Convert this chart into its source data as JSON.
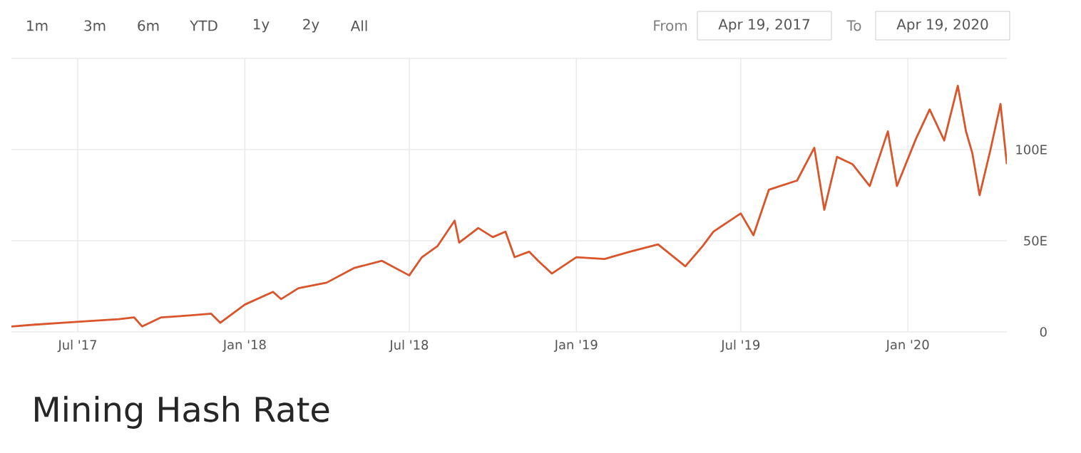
{
  "chart_data": {
    "type": "line",
    "title": "Mining Hash Rate",
    "annotations": [
      "1m",
      "3m",
      "6m",
      "YTD",
      "1y",
      "2y",
      "All",
      "From",
      "Apr 19, 2017",
      "To",
      "Apr 19, 2020"
    ],
    "x": [
      "2017-04-19",
      "2017-05-15",
      "2017-06-15",
      "2017-07-15",
      "2017-08-15",
      "2017-09-01",
      "2017-09-10",
      "2017-10-01",
      "2017-11-01",
      "2017-11-25",
      "2017-12-05",
      "2018-01-01",
      "2018-02-01",
      "2018-02-10",
      "2018-03-01",
      "2018-04-01",
      "2018-05-01",
      "2018-06-01",
      "2018-07-01",
      "2018-07-15",
      "2018-08-01",
      "2018-08-20",
      "2018-08-25",
      "2018-09-15",
      "2018-10-01",
      "2018-10-15",
      "2018-10-25",
      "2018-11-10",
      "2018-11-20",
      "2018-12-05",
      "2019-01-01",
      "2019-02-01",
      "2019-03-01",
      "2019-04-01",
      "2019-05-01",
      "2019-05-20",
      "2019-06-01",
      "2019-07-01",
      "2019-07-15",
      "2019-08-01",
      "2019-09-01",
      "2019-09-20",
      "2019-10-01",
      "2019-10-15",
      "2019-11-01",
      "2019-11-20",
      "2019-12-10",
      "2019-12-20",
      "2020-01-10",
      "2020-01-25",
      "2020-02-10",
      "2020-02-25",
      "2020-03-05",
      "2020-03-12",
      "2020-03-20",
      "2020-04-01",
      "2020-04-12",
      "2020-04-19"
    ],
    "series": [
      {
        "color": "#d9552b",
        "values": [
          3,
          4,
          5,
          6,
          7,
          8,
          3,
          8,
          9,
          10,
          5,
          15,
          22,
          18,
          24,
          27,
          35,
          39,
          31,
          41,
          47,
          61,
          49,
          57,
          52,
          55,
          41,
          44,
          39,
          32,
          41,
          40,
          44,
          48,
          36,
          47,
          55,
          65,
          53,
          78,
          83,
          101,
          67,
          96,
          92,
          80,
          110,
          80,
          106,
          122,
          105,
          135,
          110,
          98,
          75,
          100,
          125,
          92
        ]
      }
    ],
    "ylim": [
      0,
      150
    ],
    "yticks": [
      0,
      {
        "value": 50,
        "label": "50E"
      },
      {
        "value": 100,
        "label": "100E"
      },
      {
        "value": 150,
        "label": null
      }
    ],
    "xlim": [
      "2017-04-19",
      "2020-04-19"
    ],
    "xticks": [
      {
        "value": "2017-07-01",
        "label": "Jul '17"
      },
      {
        "value": "2018-01-01",
        "label": "Jan '18"
      },
      {
        "value": "2018-07-01",
        "label": "Jul '18"
      },
      {
        "value": "2019-01-01",
        "label": "Jan '19"
      },
      {
        "value": "2019-07-01",
        "label": "Jul '19"
      },
      {
        "value": "2020-01-01",
        "label": "Jan '20"
      }
    ],
    "grid": true,
    "marker": "none",
    "line_style": "solid"
  }
}
